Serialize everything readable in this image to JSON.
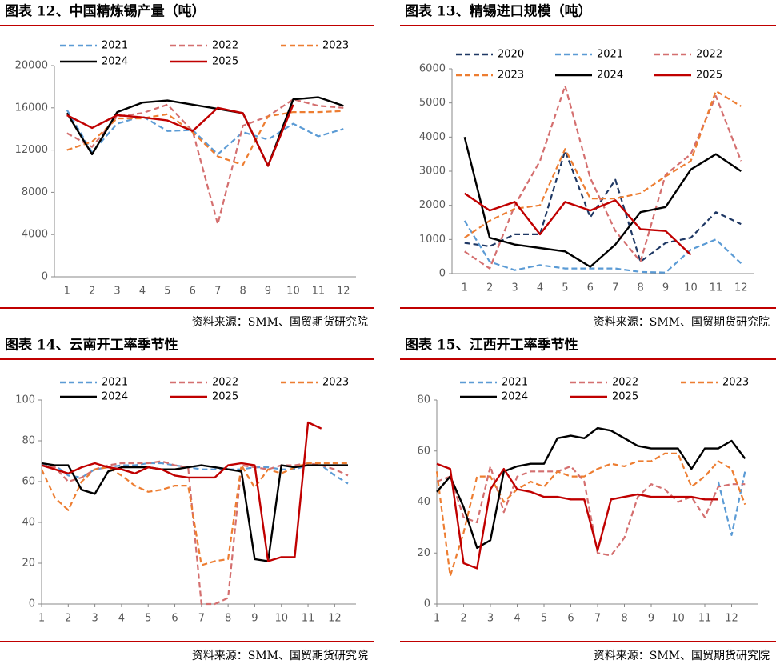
{
  "chart_data": [
    {
      "type": "line",
      "title": "图表 12、中国精炼锡产量（吨）",
      "source": "资料来源：SMM、国贸期货研究院",
      "categories": [
        "1",
        "2",
        "3",
        "4",
        "5",
        "6",
        "7",
        "8",
        "9",
        "10",
        "11",
        "12"
      ],
      "ylim": [
        0,
        20000
      ],
      "yticks": [
        0,
        4000,
        8000,
        12000,
        16000,
        20000
      ],
      "series": [
        {
          "name": "2021",
          "color": "#5b9bd5",
          "dashed": true,
          "values": [
            15800,
            11800,
            14500,
            15200,
            13800,
            13900,
            11600,
            13700,
            13000,
            14500,
            13300,
            14000
          ]
        },
        {
          "name": "2022",
          "color": "#d46f6f",
          "dashed": true,
          "values": [
            13600,
            12300,
            15200,
            15500,
            16300,
            13800,
            5000,
            14300,
            15200,
            16800,
            16200,
            16000
          ]
        },
        {
          "name": "2023",
          "color": "#ed7d31",
          "dashed": true,
          "values": [
            12000,
            12800,
            15000,
            15000,
            15400,
            13700,
            11400,
            10600,
            15200,
            15600,
            15600,
            15700
          ]
        },
        {
          "name": "2024",
          "color": "#000000",
          "dashed": false,
          "values": [
            15500,
            11600,
            15600,
            16500,
            16700,
            16300,
            15900,
            15500,
            10500,
            16800,
            17000,
            16200
          ]
        },
        {
          "name": "2025",
          "color": "#c00000",
          "dashed": false,
          "values": [
            15300,
            14100,
            15300,
            15100,
            14800,
            13800,
            16000,
            15500,
            10500,
            16300,
            null,
            null
          ]
        }
      ]
    },
    {
      "type": "line",
      "title": "图表 13、精锡进口规模（吨）",
      "source": "资料来源：SMM、国贸期货研究院",
      "categories": [
        "1",
        "2",
        "3",
        "4",
        "5",
        "6",
        "7",
        "8",
        "9",
        "10",
        "11",
        "12"
      ],
      "ylim": [
        0,
        6000
      ],
      "yticks": [
        0,
        1000,
        2000,
        3000,
        4000,
        5000,
        6000
      ],
      "series": [
        {
          "name": "2020",
          "color": "#1f3864",
          "dashed": true,
          "values": [
            900,
            800,
            1150,
            1150,
            3600,
            1650,
            2750,
            350,
            900,
            1050,
            1800,
            1450
          ]
        },
        {
          "name": "2021",
          "color": "#5b9bd5",
          "dashed": true,
          "values": [
            1550,
            350,
            100,
            250,
            150,
            150,
            150,
            50,
            30,
            700,
            1000,
            300
          ]
        },
        {
          "name": "2022",
          "color": "#d46f6f",
          "dashed": true,
          "values": [
            650,
            150,
            2000,
            3300,
            5500,
            2800,
            1250,
            350,
            2900,
            3500,
            5200,
            3300
          ]
        },
        {
          "name": "2023",
          "color": "#ed7d31",
          "dashed": true,
          "values": [
            1050,
            1550,
            1900,
            2000,
            3650,
            2200,
            2200,
            2350,
            2850,
            3300,
            5350,
            4900
          ]
        },
        {
          "name": "2024",
          "color": "#000000",
          "dashed": false,
          "values": [
            4000,
            1050,
            850,
            750,
            650,
            200,
            850,
            1800,
            1950,
            3050,
            3500,
            3000
          ]
        },
        {
          "name": "2025",
          "color": "#c00000",
          "dashed": false,
          "values": [
            2350,
            1850,
            2100,
            1150,
            2100,
            1850,
            2150,
            1300,
            1250,
            550,
            null,
            null
          ]
        }
      ]
    },
    {
      "type": "line",
      "title": "图表 14、云南开工率季节性",
      "source": "资料来源：SMM、国贸期货研究院",
      "x": [
        1,
        1.5,
        2,
        2.5,
        3,
        3.5,
        4,
        4.5,
        5,
        5.5,
        6,
        6.5,
        7,
        7.5,
        8,
        8.5,
        9,
        9.5,
        10,
        10.5,
        11,
        11.5,
        12,
        12.5
      ],
      "xlim": [
        1,
        12.8
      ],
      "xticks": [
        1,
        2,
        3,
        4,
        5,
        6,
        7,
        8,
        9,
        10,
        11,
        12
      ],
      "ylim": [
        0,
        100
      ],
      "yticks": [
        0,
        20,
        40,
        60,
        80,
        100
      ],
      "series": [
        {
          "name": "2021",
          "color": "#5b9bd5",
          "dashed": true,
          "values": [
            68,
            68,
            63,
            62,
            66,
            67,
            68,
            68,
            69,
            69,
            68,
            67,
            66,
            66,
            66,
            66,
            67,
            67,
            66,
            66,
            68,
            68,
            63,
            59
          ]
        },
        {
          "name": "2022",
          "color": "#d46f6f",
          "dashed": true,
          "values": [
            68,
            67,
            60,
            62,
            66,
            68,
            69,
            69,
            69,
            70,
            68,
            67,
            0,
            0,
            3,
            68,
            67,
            66,
            68,
            68,
            69,
            68,
            66,
            63
          ]
        },
        {
          "name": "2023",
          "color": "#ed7d31",
          "dashed": true,
          "values": [
            66,
            52,
            46,
            60,
            66,
            67,
            63,
            58,
            55,
            56,
            58,
            58,
            19,
            21,
            22,
            68,
            57,
            66,
            64,
            67,
            69,
            69,
            69,
            69
          ]
        },
        {
          "name": "2024",
          "color": "#000000",
          "dashed": false,
          "values": [
            69,
            68,
            68,
            56,
            54,
            65,
            67,
            67,
            67,
            66,
            66,
            67,
            68,
            67,
            66,
            65,
            22,
            21,
            68,
            67,
            68,
            68,
            68,
            68
          ]
        },
        {
          "name": "2025",
          "color": "#c00000",
          "dashed": false,
          "values": [
            68,
            66,
            64,
            67,
            69,
            67,
            66,
            64,
            67,
            66,
            63,
            62,
            62,
            62,
            68,
            69,
            68,
            21,
            23,
            23,
            89,
            86,
            null,
            null
          ]
        }
      ]
    },
    {
      "type": "line",
      "title": "图表 15、江西开工率季节性",
      "source": "资料来源：SMM、国贸期货研究院",
      "x": [
        1,
        1.5,
        2,
        2.5,
        3,
        3.5,
        4,
        4.5,
        5,
        5.5,
        6,
        6.5,
        7,
        7.5,
        8,
        8.5,
        9,
        9.5,
        10,
        10.5,
        11,
        11.5,
        12,
        12.5
      ],
      "xlim": [
        1,
        13
      ],
      "xticks": [
        1,
        2,
        3,
        4,
        5,
        6,
        7,
        8,
        9,
        10,
        11,
        12
      ],
      "ylim": [
        0,
        80
      ],
      "yticks": [
        0,
        20,
        40,
        60,
        80
      ],
      "series": [
        {
          "name": "2021",
          "color": "#5b9bd5",
          "dashed": true,
          "values": [
            null,
            null,
            null,
            null,
            null,
            null,
            null,
            null,
            null,
            null,
            null,
            null,
            null,
            null,
            null,
            null,
            null,
            null,
            null,
            null,
            null,
            48,
            27,
            52
          ]
        },
        {
          "name": "2022",
          "color": "#d46f6f",
          "dashed": true,
          "values": [
            48,
            50,
            34,
            32,
            54,
            36,
            50,
            52,
            52,
            52,
            54,
            48,
            20,
            19,
            26,
            42,
            47,
            45,
            40,
            42,
            34,
            46,
            47,
            47
          ]
        },
        {
          "name": "2023",
          "color": "#ed7d31",
          "dashed": true,
          "values": [
            52,
            11,
            28,
            50,
            50,
            40,
            45,
            48,
            46,
            52,
            50,
            50,
            53,
            55,
            54,
            56,
            56,
            59,
            59,
            46,
            50,
            56,
            53,
            39
          ]
        },
        {
          "name": "2024",
          "color": "#000000",
          "dashed": false,
          "values": [
            44,
            50,
            38,
            22,
            25,
            52,
            54,
            55,
            55,
            65,
            66,
            65,
            69,
            68,
            65,
            62,
            61,
            61,
            61,
            53,
            61,
            61,
            64,
            57
          ]
        },
        {
          "name": "2025",
          "color": "#c00000",
          "dashed": false,
          "values": [
            55,
            53,
            16,
            14,
            45,
            53,
            45,
            44,
            42,
            42,
            41,
            41,
            21,
            41,
            42,
            43,
            42,
            42,
            42,
            42,
            41,
            41,
            null,
            null
          ]
        }
      ]
    }
  ]
}
